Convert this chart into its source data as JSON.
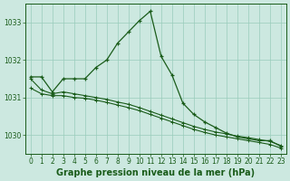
{
  "title": "Graphe pression niveau de la mer (hPa)",
  "background_color": "#cce8e0",
  "grid_color": "#99ccbb",
  "line_color": "#1a5c1a",
  "x_values": [
    0,
    1,
    2,
    3,
    4,
    5,
    6,
    7,
    8,
    9,
    10,
    11,
    12,
    13,
    14,
    15,
    16,
    17,
    18,
    19,
    20,
    21,
    22,
    23
  ],
  "curve_peak": [
    1031.55,
    1031.55,
    1031.15,
    1031.5,
    1031.5,
    1031.5,
    1031.8,
    1032.0,
    1032.45,
    1032.75,
    1033.05,
    1033.3,
    1032.1,
    1031.6,
    1030.85,
    1030.55,
    1030.35,
    1030.2,
    1030.05,
    1029.95,
    1029.9,
    1029.85,
    1029.85,
    1029.7
  ],
  "curve_mid": [
    1031.5,
    1031.2,
    1031.1,
    1031.15,
    1031.1,
    1031.05,
    1031.0,
    1030.95,
    1030.88,
    1030.82,
    1030.73,
    1030.63,
    1030.53,
    1030.43,
    1030.33,
    1030.23,
    1030.15,
    1030.08,
    1030.03,
    1029.97,
    1029.93,
    1029.88,
    1029.83,
    1029.72
  ],
  "curve_low": [
    1031.25,
    1031.1,
    1031.05,
    1031.05,
    1031.0,
    1030.98,
    1030.93,
    1030.87,
    1030.8,
    1030.73,
    1030.65,
    1030.55,
    1030.45,
    1030.35,
    1030.25,
    1030.15,
    1030.07,
    1030.0,
    1029.95,
    1029.9,
    1029.85,
    1029.8,
    1029.75,
    1029.65
  ],
  "ylim": [
    1029.5,
    1033.5
  ],
  "yticks": [
    1030,
    1031,
    1032,
    1033
  ],
  "xlim": [
    -0.5,
    23.5
  ],
  "xticks": [
    0,
    1,
    2,
    3,
    4,
    5,
    6,
    7,
    8,
    9,
    10,
    11,
    12,
    13,
    14,
    15,
    16,
    17,
    18,
    19,
    20,
    21,
    22,
    23
  ],
  "title_fontsize": 7,
  "tick_fontsize": 5.5
}
